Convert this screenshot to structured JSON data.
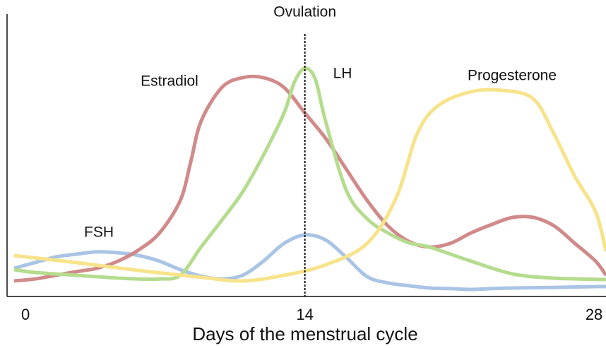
{
  "chart_data": {
    "type": "line",
    "xlabel": "Days of the menstrual cycle",
    "xlim": [
      0,
      28.5
    ],
    "xticks": [
      0,
      14,
      28
    ],
    "ylim": [
      0,
      100
    ],
    "annotations": [
      {
        "label": "Ovulation",
        "x": 14
      }
    ],
    "series": [
      {
        "name": "FSH",
        "color": "#a9c4e4",
        "x": [
          0,
          1,
          2,
          3,
          4,
          5,
          6,
          7,
          8,
          9,
          10,
          11,
          12,
          13,
          14,
          15,
          16,
          17,
          18,
          19,
          20,
          21,
          22,
          23,
          24,
          26,
          28,
          28.5
        ],
        "values": [
          10,
          12,
          14,
          15,
          15.8,
          15.5,
          14.5,
          12.5,
          9.5,
          7.2,
          6.2,
          7.5,
          12.5,
          18.8,
          21.8,
          20,
          13.8,
          7,
          4.8,
          3.8,
          3,
          2.8,
          2.5,
          2.8,
          3,
          3.2,
          3.5,
          3.5
        ]
      },
      {
        "name": "Estradiol",
        "color": "#d08a8a",
        "x": [
          0,
          1,
          2,
          3,
          4,
          5,
          6,
          7,
          8,
          8.5,
          9,
          10,
          11,
          12,
          13,
          14,
          15,
          16,
          17,
          18,
          19,
          20,
          21,
          22,
          23,
          24,
          25,
          26,
          27,
          28,
          28.5
        ],
        "values": [
          5.5,
          6.2,
          7.5,
          8.8,
          10,
          12.5,
          16.5,
          22.5,
          34,
          47.5,
          62,
          74,
          77.5,
          77.5,
          74,
          65,
          56,
          45,
          34,
          25,
          19.5,
          17.5,
          18.8,
          22.5,
          25.5,
          28,
          28,
          25,
          18.8,
          12.5,
          7.5
        ]
      },
      {
        "name": "LH",
        "color": "#b5dc8e",
        "x": [
          0,
          1,
          3,
          5,
          6,
          7,
          8,
          9,
          10,
          11,
          12,
          13,
          13.5,
          14,
          14.5,
          15,
          16,
          17,
          18,
          19,
          20,
          22,
          24,
          26,
          28.5
        ],
        "values": [
          9.5,
          8.5,
          7.5,
          6.5,
          6.2,
          6.2,
          7.5,
          17.5,
          27,
          37,
          50,
          65,
          76,
          80.8,
          77,
          62,
          37.5,
          27.5,
          22.5,
          19,
          17.5,
          12.5,
          8,
          6.5,
          6
        ]
      },
      {
        "name": "Progesterone",
        "color": "#f7e38a",
        "x": [
          0,
          3,
          6,
          9,
          11,
          13,
          15,
          17,
          18.4,
          19.4,
          20.4,
          22,
          23.5,
          25,
          26,
          27,
          28,
          28.5
        ],
        "values": [
          14.5,
          12,
          9.2,
          6.8,
          5.5,
          7.5,
          11.2,
          18.8,
          35,
          57.5,
          67.5,
          72.5,
          73,
          70,
          57.5,
          42.5,
          30,
          16
        ]
      }
    ]
  }
}
